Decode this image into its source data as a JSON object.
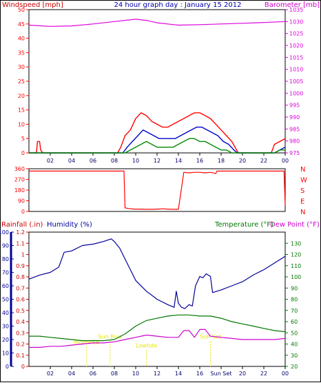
{
  "header": {
    "title": "24 hour graph day : January 15 2012",
    "left_label": "Windspeed [mph]",
    "right_label": "Barometer [mb]"
  },
  "colors": {
    "wind": "#ff0000",
    "wind_avg": "#0000cc",
    "wind_min": "#008800",
    "barometer": "#dd00dd",
    "rain": "#cc0000",
    "humidity": "#000099",
    "temperature": "#007700",
    "dewpoint": "#cc00cc",
    "annotation": "#e6e600",
    "axis": "#000000"
  },
  "chart_data": [
    {
      "type": "line",
      "name": "wind-barometer",
      "x_range": [
        0,
        24
      ],
      "xtick_labels": [
        "02",
        "04",
        "06",
        "08",
        "10",
        "12",
        "14",
        "16",
        "18",
        "20",
        "22",
        "00"
      ],
      "ylim_left": [
        0,
        50
      ],
      "ytick_left": [
        "0",
        "5",
        "10",
        "15",
        "20",
        "25",
        "30",
        "35",
        "40",
        "45",
        "50"
      ],
      "ylim_right": [
        975,
        1035
      ],
      "ytick_right": [
        "975",
        "980",
        "985",
        "990",
        "995",
        "1000",
        "1005",
        "1010",
        "1015",
        "1020",
        "1025",
        "1030",
        "1035"
      ],
      "series": [
        {
          "key": "gust",
          "axis": "left",
          "x": [
            0,
            0.7,
            0.8,
            1.0,
            1.1,
            1.3,
            8.3,
            8.6,
            9.0,
            9.5,
            10.0,
            10.5,
            11.0,
            11.5,
            12.0,
            12.5,
            13.0,
            13.5,
            14.0,
            14.5,
            15.0,
            15.5,
            16.0,
            16.5,
            17.0,
            17.5,
            18.0,
            18.5,
            19.0,
            19.3,
            19.6,
            22.7,
            23.0,
            23.5,
            24.0
          ],
          "y": [
            0,
            0,
            4,
            4,
            1,
            0,
            0,
            2,
            6,
            8,
            12,
            14,
            13,
            11,
            10,
            9,
            9,
            10,
            11,
            12,
            13,
            14,
            14,
            13,
            12,
            10,
            8,
            6,
            4,
            2,
            0,
            0,
            3,
            4,
            5
          ]
        },
        {
          "key": "average",
          "axis": "left",
          "x": [
            0,
            8.8,
            9.2,
            9.7,
            10.2,
            10.7,
            11.2,
            11.7,
            12.2,
            12.7,
            13.2,
            13.7,
            14.2,
            14.7,
            15.2,
            15.7,
            16.2,
            16.7,
            17.2,
            17.7,
            18.2,
            18.7,
            19.2,
            19.5,
            23.0,
            23.5,
            24.0
          ],
          "y": [
            0,
            0,
            2,
            4,
            6,
            8,
            7,
            6,
            5,
            5,
            5,
            5,
            6,
            7,
            8,
            9,
            9,
            8,
            7,
            6,
            4,
            3,
            1,
            0,
            0,
            1,
            2
          ]
        },
        {
          "key": "minimum",
          "axis": "left",
          "x": [
            0,
            9.0,
            9.5,
            10.0,
            10.5,
            11.0,
            11.5,
            12.0,
            12.5,
            13.0,
            13.5,
            14.0,
            14.5,
            15.0,
            15.5,
            16.0,
            16.5,
            17.0,
            17.5,
            18.0,
            18.5,
            19.0,
            23.0,
            23.5,
            24.0
          ],
          "y": [
            0,
            0,
            1,
            2,
            3,
            4,
            3,
            2,
            2,
            2,
            2,
            3,
            4,
            5,
            5,
            4,
            4,
            3,
            2,
            1,
            1,
            0,
            0,
            1,
            1
          ]
        },
        {
          "key": "barometer",
          "axis": "right",
          "x": [
            0,
            2,
            4,
            6,
            8,
            10,
            11,
            12,
            14,
            16,
            18,
            20,
            22,
            24
          ],
          "y": [
            1028.5,
            1028,
            1028.2,
            1029,
            1030,
            1031,
            1030.5,
            1029.5,
            1028.5,
            1028.7,
            1029,
            1029.3,
            1029.6,
            1030
          ]
        }
      ]
    },
    {
      "type": "line",
      "name": "wind-direction",
      "x_range": [
        0,
        24
      ],
      "ylim": [
        0,
        360
      ],
      "ytick_left": [
        "0",
        "90",
        "180",
        "270",
        "360"
      ],
      "ytick_right": [
        "N",
        "E",
        "S",
        "W",
        "N"
      ],
      "series": [
        {
          "key": "direction",
          "x": [
            0,
            8.5,
            8.9,
            9.0,
            9.3,
            9.8,
            10.5,
            11.0,
            11.5,
            12.0,
            12.5,
            13.0,
            13.5,
            14.0,
            14.5,
            15.0,
            15.5,
            16.0,
            16.5,
            17.0,
            17.5,
            17.6,
            18.0,
            22.5,
            23.9,
            24.0
          ],
          "y": [
            340,
            340,
            340,
            30,
            25,
            20,
            20,
            18,
            18,
            20,
            22,
            20,
            18,
            18,
            330,
            325,
            330,
            330,
            325,
            330,
            320,
            340,
            340,
            340,
            340,
            50
          ]
        }
      ]
    },
    {
      "type": "line",
      "name": "rain-humidity-temperature",
      "x_range": [
        0,
        24
      ],
      "labels": {
        "rain": "Rainfall (.in)",
        "humidity": "Humidity (%)",
        "temperature": "Temperature (°F)",
        "dewpoint": "Dew Point (°F)"
      },
      "xtick_labels": [
        "02",
        "04",
        "06",
        "08",
        "10",
        "12",
        "14",
        "16",
        "Sun Set",
        "20",
        "22",
        "00"
      ],
      "rain_axis": {
        "ylim": [
          0,
          1.2
        ],
        "ticks": [
          "0",
          "0.1",
          "0.2",
          "0.3",
          "0.4",
          "0.5",
          "0.6",
          "0.7",
          "0.8",
          "0.9",
          "1",
          "1.1",
          "1.2"
        ]
      },
      "humidity_axis": {
        "ylim": [
          0,
          100
        ],
        "ticks": [
          "0",
          "10",
          "20",
          "30",
          "40",
          "50",
          "60",
          "70",
          "80",
          "90",
          "100"
        ]
      },
      "temperature_axis": {
        "ylim": [
          20,
          140
        ],
        "ticks": [
          "20",
          "30",
          "40",
          "50",
          "60",
          "70",
          "80",
          "90",
          "100",
          "110",
          "120",
          "130"
        ]
      },
      "annotations": [
        {
          "text": "Sun Rise",
          "x": 7.6,
          "y_temp": 45
        },
        {
          "text": "Moonrise",
          "x": 5.4,
          "y_temp": 40
        },
        {
          "text": "Lowtide",
          "x": 11.0,
          "y_temp": 37
        },
        {
          "text": "Sun Set",
          "x": 17.0,
          "y_temp": 45
        }
      ],
      "series": [
        {
          "key": "humidity",
          "axis": "humidity",
          "x": [
            0,
            1,
            2,
            2.8,
            3.3,
            4,
            5,
            6,
            7,
            7.7,
            8,
            8.5,
            9,
            9.5,
            10,
            11,
            12,
            13,
            13.6,
            13.8,
            14.0,
            14.3,
            14.6,
            15.0,
            15.3,
            15.6,
            16.0,
            16.3,
            16.6,
            17.0,
            17.2,
            18,
            19,
            20,
            21,
            22,
            23,
            24
          ],
          "y": [
            65,
            68,
            70,
            74,
            85,
            86,
            90,
            91,
            93,
            95,
            93,
            88,
            80,
            72,
            64,
            56,
            50,
            46,
            44,
            56,
            47,
            44,
            43,
            46,
            45,
            60,
            67,
            66,
            69,
            67,
            55,
            57,
            60,
            63,
            68,
            72,
            77,
            82
          ]
        },
        {
          "key": "temperature",
          "axis": "temperature",
          "x": [
            0,
            1,
            2,
            3,
            4,
            5,
            6,
            7,
            8,
            9,
            10,
            11,
            12,
            13,
            14,
            15,
            16,
            17,
            18,
            19,
            20,
            21,
            22,
            23,
            24
          ],
          "y": [
            47,
            47,
            46,
            45,
            44,
            43,
            43,
            43,
            44,
            49,
            56,
            61,
            63,
            65,
            66,
            66,
            65,
            65,
            63,
            60,
            58,
            56,
            54,
            52,
            51
          ]
        },
        {
          "key": "dewpoint",
          "axis": "temperature",
          "x": [
            0,
            1,
            2,
            3,
            4,
            5,
            6,
            7,
            8,
            9,
            10,
            11,
            12,
            13,
            14,
            14.5,
            15,
            15.5,
            16,
            16.5,
            17,
            18,
            19,
            20,
            21,
            22,
            23,
            24
          ],
          "y": [
            37,
            37,
            38,
            38,
            39,
            40,
            41,
            41,
            42,
            44,
            46,
            48,
            47,
            46,
            46,
            52,
            52,
            46,
            53,
            53,
            47,
            46,
            45,
            44,
            44,
            44,
            44,
            45
          ]
        }
      ]
    }
  ]
}
